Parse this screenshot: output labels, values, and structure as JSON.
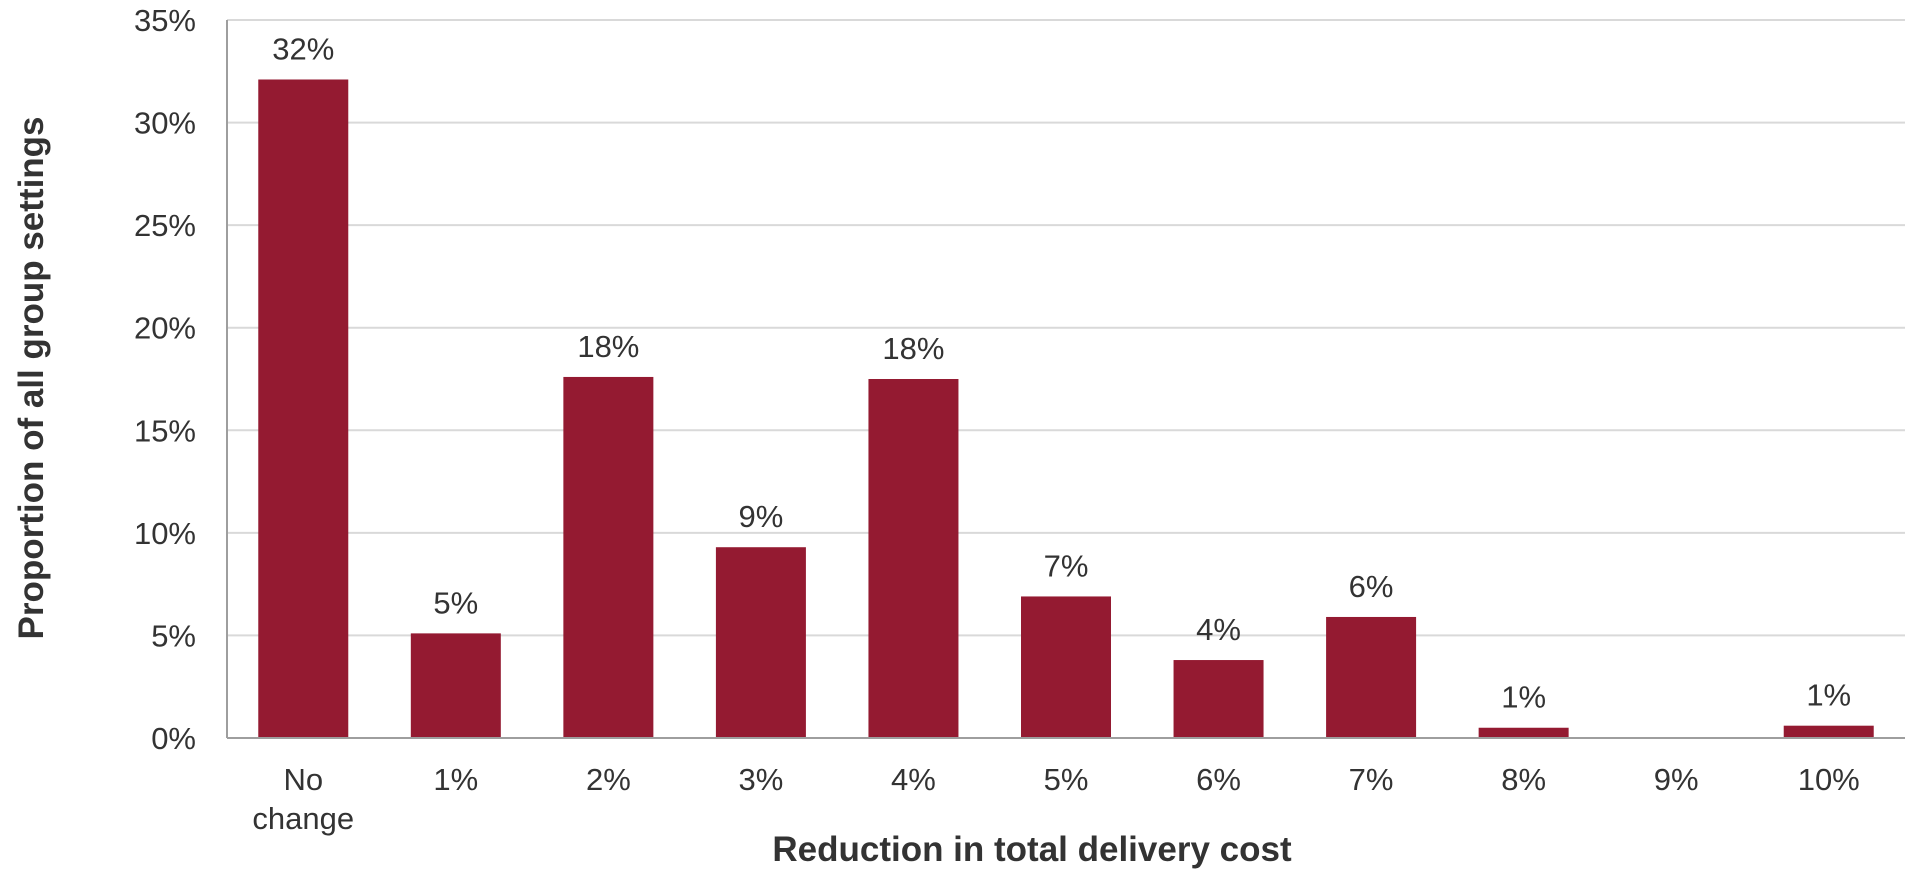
{
  "chart_data": {
    "type": "bar",
    "categories": [
      [
        "No",
        "change"
      ],
      [
        "1%"
      ],
      [
        "2%"
      ],
      [
        "3%"
      ],
      [
        "4%"
      ],
      [
        "5%"
      ],
      [
        "6%"
      ],
      [
        "7%"
      ],
      [
        "8%"
      ],
      [
        "9%"
      ],
      [
        "10%"
      ]
    ],
    "values": [
      32.1,
      5.1,
      17.6,
      9.3,
      17.5,
      6.9,
      3.8,
      5.9,
      0.5,
      0,
      0.6
    ],
    "data_labels": [
      "32%",
      "5%",
      "18%",
      "9%",
      "18%",
      "7%",
      "4%",
      "6%",
      "1%",
      "",
      "1%"
    ],
    "ylim": [
      0,
      35
    ],
    "yticks": [
      0,
      5,
      10,
      15,
      20,
      25,
      30,
      35
    ],
    "ytick_labels": [
      "0%",
      "5%",
      "10%",
      "15%",
      "20%",
      "25%",
      "30%",
      "35%"
    ],
    "xlabel": "Reduction in total delivery cost",
    "ylabel": "Proportion of all group settings",
    "grid": true,
    "legend": "none",
    "colors": {
      "bar": "#941a31",
      "grid": "#d9d9d9",
      "axis": "#9e9e9e",
      "text": "#333333"
    }
  }
}
